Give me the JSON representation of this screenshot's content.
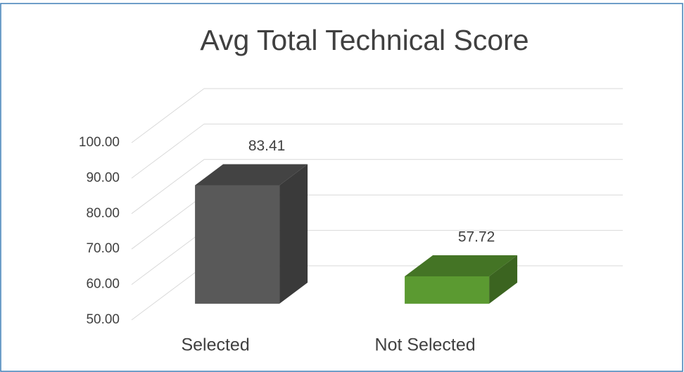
{
  "chart_data": {
    "type": "bar3d",
    "title": "Avg Total Technical Score",
    "categories": [
      "Selected",
      "Not Selected"
    ],
    "series": [
      {
        "values": [
          83.41,
          57.72
        ],
        "colors": [
          "#595959",
          "#5b9a31"
        ]
      }
    ],
    "ylim": [
      50,
      100
    ],
    "yticks": [
      {
        "value": 50,
        "label": "50.00"
      },
      {
        "value": 60,
        "label": "60.00"
      },
      {
        "value": 70,
        "label": "70.00"
      },
      {
        "value": 80,
        "label": "80.00"
      },
      {
        "value": 90,
        "label": "90.00"
      },
      {
        "value": 100,
        "label": "100.00"
      }
    ],
    "grid": true
  }
}
